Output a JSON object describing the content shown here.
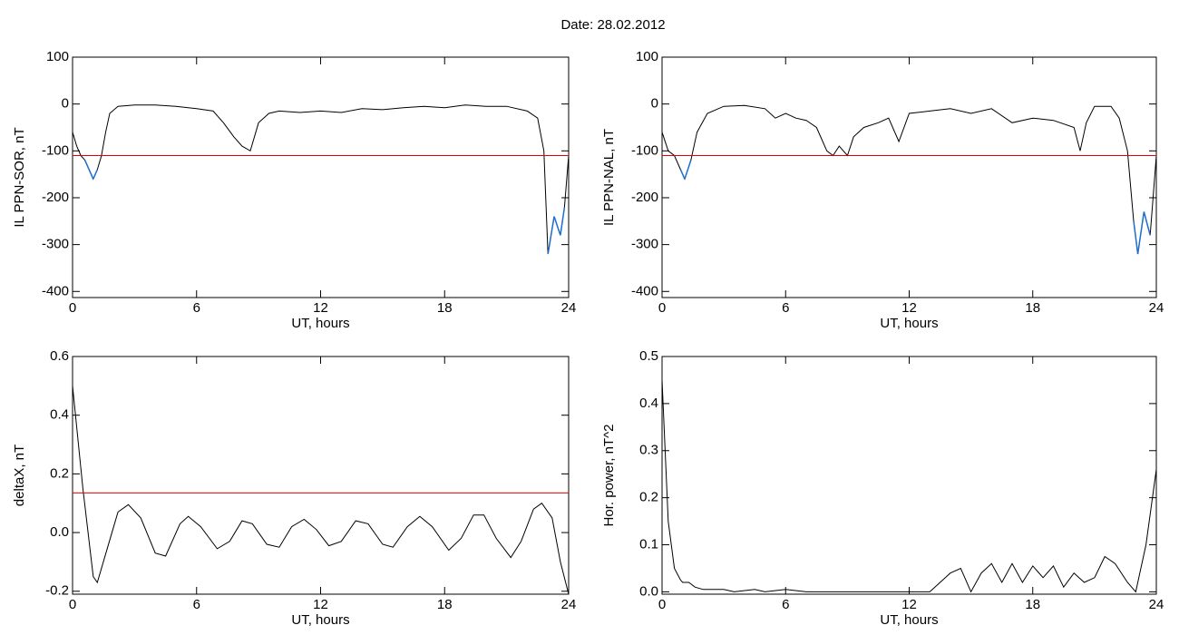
{
  "title": "Date:  28.02.2012",
  "chart_data": [
    {
      "type": "line",
      "ylabel": "IL PPN-SOR, nT",
      "xlabel": "UT, hours",
      "xlim": [
        0,
        24
      ],
      "xticks": [
        0,
        6,
        12,
        18,
        24
      ],
      "ylim": [
        -413,
        100
      ],
      "yticks": [
        100,
        0,
        -100,
        -200,
        -300,
        -400
      ],
      "threshold": -110,
      "threshold_color": "#e00000",
      "below_color": "#1f6fd0",
      "x": [
        0,
        0.2,
        0.4,
        0.6,
        0.8,
        1.0,
        1.2,
        1.4,
        1.6,
        1.8,
        2.2,
        3,
        4,
        5,
        6,
        6.8,
        7.3,
        7.8,
        8.2,
        8.6,
        9,
        9.5,
        10,
        11,
        12,
        13,
        14,
        15,
        16,
        17,
        18,
        19,
        20,
        21,
        22,
        22.5,
        22.8,
        23.0,
        23.3,
        23.6,
        23.8,
        24
      ],
      "series": [
        {
          "color": "#000000",
          "values": [
            -60,
            -90,
            -110,
            -120,
            -140,
            -160,
            -140,
            -110,
            -60,
            -20,
            -5,
            -2,
            -2,
            -5,
            -10,
            -15,
            -40,
            -70,
            -90,
            -100,
            -40,
            -20,
            -15,
            -18,
            -15,
            -18,
            -10,
            -12,
            -8,
            -5,
            -8,
            -2,
            -5,
            -5,
            -15,
            -30,
            -100,
            -320,
            -240,
            -280,
            -220,
            -110
          ]
        }
      ]
    },
    {
      "type": "line",
      "ylabel": "IL PPN-NAL, nT",
      "xlabel": "UT, hours",
      "xlim": [
        0,
        24
      ],
      "xticks": [
        0,
        6,
        12,
        18,
        24
      ],
      "ylim": [
        -413,
        100
      ],
      "yticks": [
        100,
        0,
        -100,
        -200,
        -300,
        -400
      ],
      "threshold": -110,
      "threshold_color": "#e00000",
      "below_color": "#1f6fd0",
      "x": [
        0,
        0.3,
        0.6,
        0.9,
        1.1,
        1.4,
        1.7,
        2.2,
        3,
        4,
        5,
        5.5,
        6,
        6.5,
        7,
        7.5,
        8,
        8.3,
        8.6,
        9,
        9.3,
        9.8,
        10.5,
        11,
        11.5,
        12,
        13,
        14,
        15,
        16,
        17,
        18,
        19,
        20,
        20.3,
        20.6,
        21,
        21.8,
        22.2,
        22.6,
        22.9,
        23.1,
        23.4,
        23.7,
        24
      ],
      "series": [
        {
          "color": "#000000",
          "values": [
            -60,
            -100,
            -110,
            -140,
            -160,
            -120,
            -60,
            -20,
            -5,
            -3,
            -10,
            -30,
            -20,
            -30,
            -35,
            -50,
            -100,
            -110,
            -90,
            -110,
            -70,
            -50,
            -40,
            -30,
            -80,
            -20,
            -15,
            -10,
            -20,
            -10,
            -40,
            -30,
            -35,
            -50,
            -100,
            -40,
            -5,
            -5,
            -30,
            -100,
            -250,
            -320,
            -230,
            -280,
            -110
          ]
        }
      ]
    },
    {
      "type": "line",
      "ylabel": "deltaX, nT",
      "xlabel": "UT, hours",
      "xlim": [
        0,
        24
      ],
      "xticks": [
        0,
        6,
        12,
        18,
        24
      ],
      "ylim": [
        -0.21,
        0.6
      ],
      "yticks": [
        0.6,
        0.4,
        0.2,
        {
          "value": 0,
          "label": "0.0"
        },
        -0.2
      ],
      "threshold": 0.135,
      "threshold_color": "#e00000",
      "x": [
        0,
        0.5,
        1,
        1.2,
        1.7,
        2.2,
        2.7,
        3.3,
        4,
        4.5,
        5.2,
        5.6,
        6.2,
        7,
        7.6,
        8.2,
        8.7,
        9.4,
        10,
        10.6,
        11.2,
        11.8,
        12.4,
        13,
        13.7,
        14.3,
        15,
        15.5,
        16.2,
        16.8,
        17.4,
        18.2,
        18.8,
        19.4,
        19.9,
        20.5,
        21.2,
        21.7,
        22.3,
        22.7,
        23.2,
        23.6,
        24
      ],
      "series": [
        {
          "color": "#000000",
          "values": [
            0.5,
            0.15,
            -0.15,
            -0.17,
            -0.05,
            0.07,
            0.095,
            0.05,
            -0.07,
            -0.08,
            0.03,
            0.055,
            0.02,
            -0.055,
            -0.03,
            0.04,
            0.03,
            -0.04,
            -0.05,
            0.02,
            0.045,
            0.01,
            -0.045,
            -0.03,
            0.04,
            0.03,
            -0.04,
            -0.05,
            0.02,
            0.055,
            0.02,
            -0.06,
            -0.02,
            0.06,
            0.06,
            -0.02,
            -0.085,
            -0.03,
            0.08,
            0.1,
            0.05,
            -0.1,
            -0.21
          ]
        }
      ]
    },
    {
      "type": "line",
      "ylabel": "Hor. power, nT^2",
      "xlabel": "UT, hours",
      "xlim": [
        0,
        24
      ],
      "xticks": [
        0,
        6,
        12,
        18,
        24
      ],
      "ylim": [
        -0.005,
        0.5
      ],
      "yticks": [
        0.5,
        0.4,
        0.3,
        0.2,
        0.1,
        {
          "value": 0,
          "label": "0.0"
        }
      ],
      "x": [
        0,
        0.3,
        0.6,
        0.9,
        1,
        1.3,
        1.6,
        2,
        3,
        3.5,
        4.5,
        5,
        6,
        7,
        8,
        12,
        13,
        13.5,
        14,
        14.5,
        15,
        15.5,
        16,
        16.5,
        17,
        17.5,
        18,
        18.5,
        19,
        19.5,
        20,
        20.5,
        21,
        21.5,
        22,
        22.6,
        23,
        23.5,
        24
      ],
      "series": [
        {
          "color": "#000000",
          "values": [
            0.45,
            0.15,
            0.05,
            0.025,
            0.02,
            0.02,
            0.01,
            0.005,
            0.005,
            0,
            0.005,
            0,
            0.005,
            0,
            0,
            0,
            0,
            0.02,
            0.04,
            0.05,
            0,
            0.04,
            0.06,
            0.02,
            0.06,
            0.02,
            0.055,
            0.03,
            0.055,
            0.01,
            0.04,
            0.02,
            0.03,
            0.075,
            0.06,
            0.02,
            0,
            0.1,
            0.26
          ]
        }
      ]
    }
  ]
}
